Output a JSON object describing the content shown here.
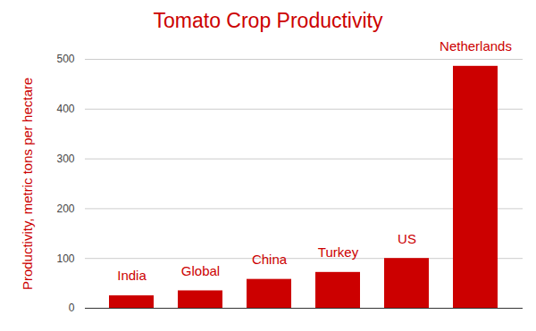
{
  "chart_data": {
    "type": "bar",
    "title": "Tomato Crop Productivity",
    "y_label": "Productivity, metric tons per hectare",
    "categories": [
      "India",
      "Global",
      "China",
      "Turkey",
      "US",
      "Netherlands"
    ],
    "values": [
      25,
      35,
      58,
      72,
      100,
      486
    ],
    "color": "#cc0000",
    "ylim": [
      0,
      500
    ],
    "yticks": [
      0,
      100,
      200,
      300,
      400,
      500
    ],
    "grid": true,
    "tick_labels": "y",
    "data_labels": false
  }
}
